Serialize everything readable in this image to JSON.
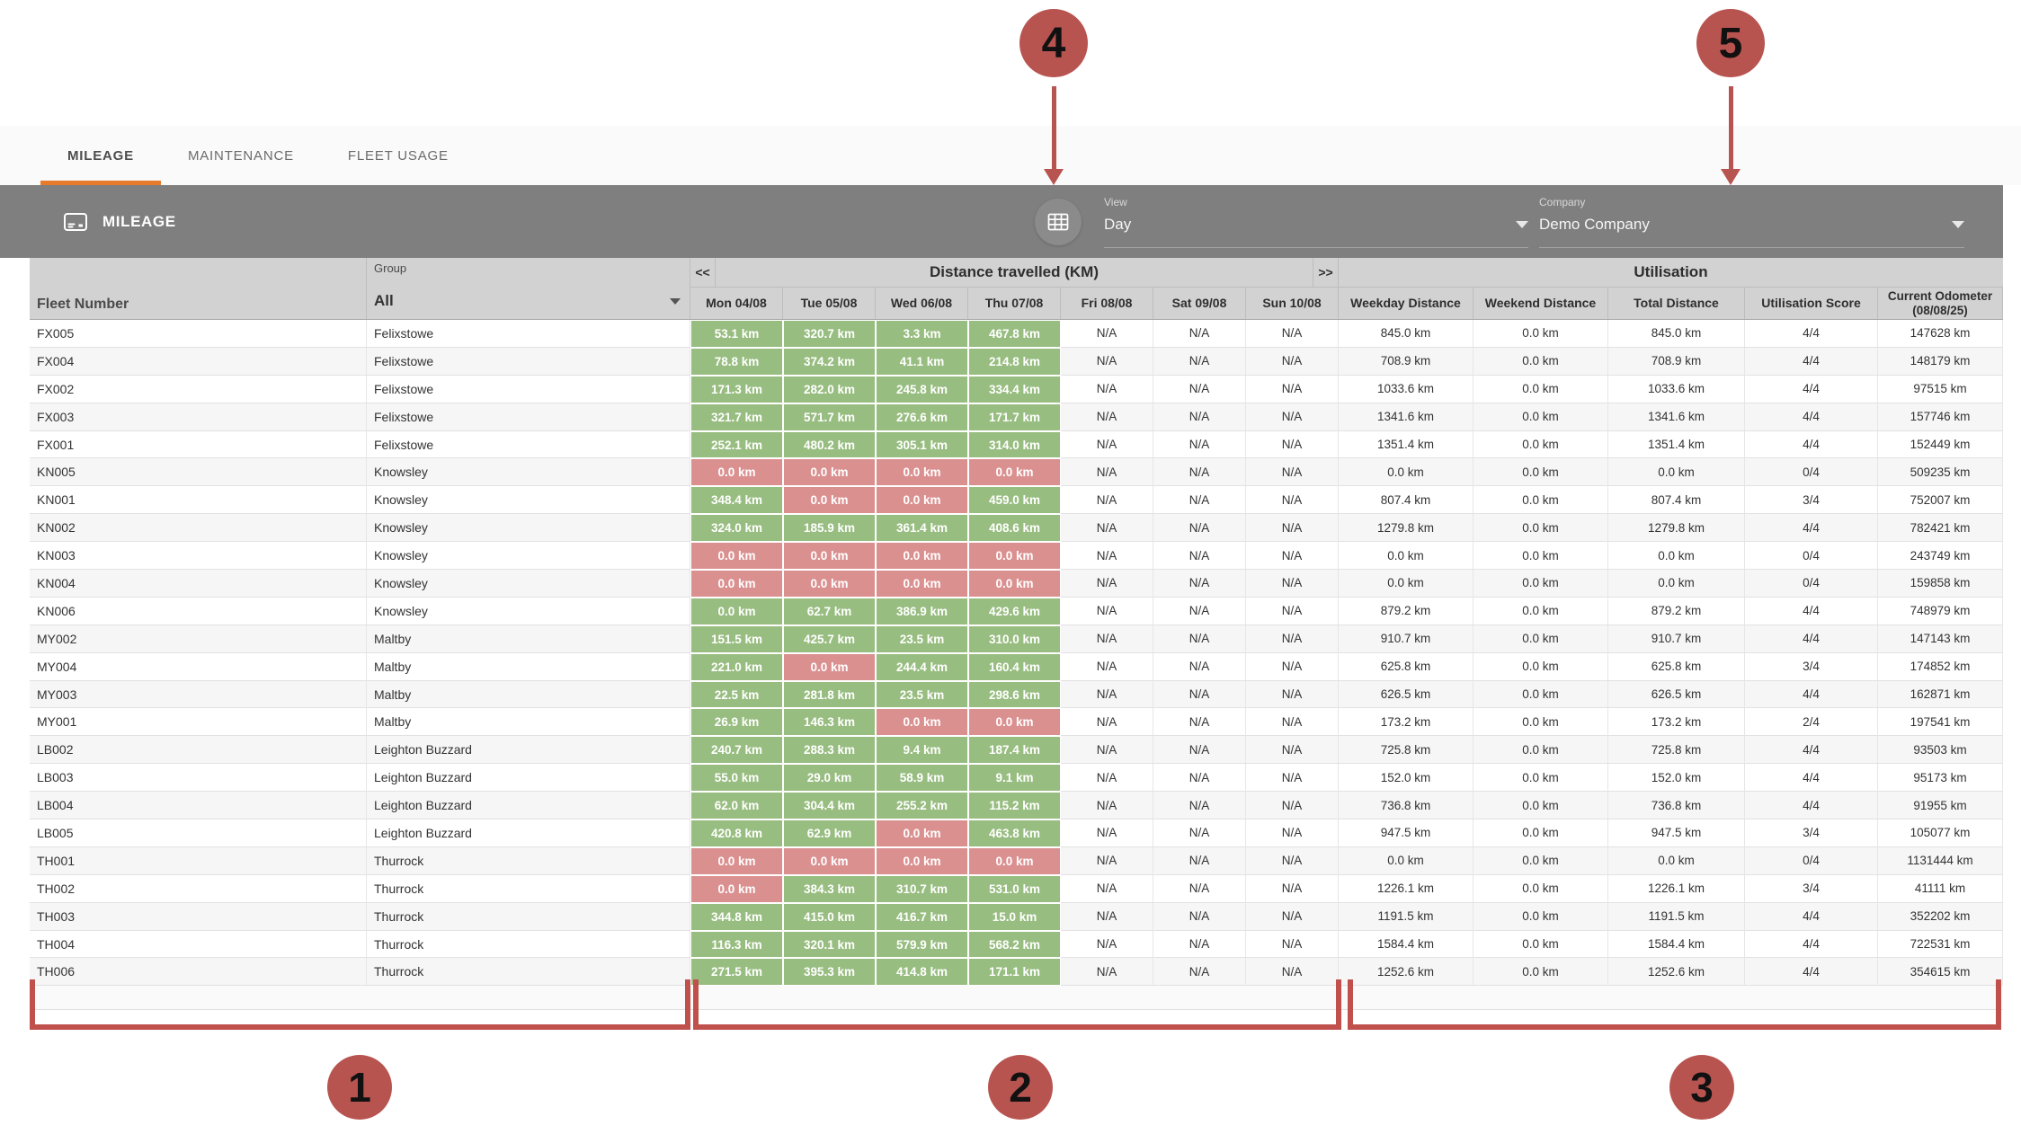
{
  "colors": {
    "accent_orange": "#e87a2b",
    "toolbar_gray": "#7f7f7f",
    "header_gray": "#d2d2d2",
    "positive_green": "#98bd80",
    "negative_red": "#db9090",
    "annotation_red": "#b85450"
  },
  "tabs": [
    {
      "label": "MILEAGE",
      "active": true
    },
    {
      "label": "MAINTENANCE",
      "active": false
    },
    {
      "label": "FLEET USAGE",
      "active": false
    }
  ],
  "toolbar": {
    "title": "MILEAGE",
    "view": {
      "label": "View",
      "value": "Day"
    },
    "company": {
      "label": "Company",
      "value": "Demo Company"
    }
  },
  "table": {
    "fleet_number_header": "Fleet Number",
    "group_label": "Group",
    "group_value": "All",
    "distance_section": {
      "prev": "<<",
      "title": "Distance travelled (KM)",
      "next": ">>",
      "day_headers": [
        "Mon 04/08",
        "Tue 05/08",
        "Wed 06/08",
        "Thu 07/08",
        "Fri 08/08",
        "Sat 09/08",
        "Sun 10/08"
      ]
    },
    "utilisation_section": {
      "title": "Utilisation",
      "headers": [
        "Weekday Distance",
        "Weekend Distance",
        "Total Distance",
        "Utilisation Score",
        "Current Odometer (08/08/25)"
      ]
    },
    "rows": [
      {
        "fleet": "FX005",
        "group": "Felixstowe",
        "days": [
          [
            "53.1 km",
            "green"
          ],
          [
            "320.7 km",
            "green"
          ],
          [
            "3.3 km",
            "green"
          ],
          [
            "467.8 km",
            "green"
          ],
          [
            "N/A",
            "na"
          ],
          [
            "N/A",
            "na"
          ],
          [
            "N/A",
            "na"
          ]
        ],
        "utilisation": [
          "845.0 km",
          "0.0 km",
          "845.0 km",
          "4/4",
          "147628 km"
        ]
      },
      {
        "fleet": "FX004",
        "group": "Felixstowe",
        "days": [
          [
            "78.8 km",
            "green"
          ],
          [
            "374.2 km",
            "green"
          ],
          [
            "41.1 km",
            "green"
          ],
          [
            "214.8 km",
            "green"
          ],
          [
            "N/A",
            "na"
          ],
          [
            "N/A",
            "na"
          ],
          [
            "N/A",
            "na"
          ]
        ],
        "utilisation": [
          "708.9 km",
          "0.0 km",
          "708.9 km",
          "4/4",
          "148179 km"
        ]
      },
      {
        "fleet": "FX002",
        "group": "Felixstowe",
        "days": [
          [
            "171.3 km",
            "green"
          ],
          [
            "282.0 km",
            "green"
          ],
          [
            "245.8 km",
            "green"
          ],
          [
            "334.4 km",
            "green"
          ],
          [
            "N/A",
            "na"
          ],
          [
            "N/A",
            "na"
          ],
          [
            "N/A",
            "na"
          ]
        ],
        "utilisation": [
          "1033.6 km",
          "0.0 km",
          "1033.6 km",
          "4/4",
          "97515 km"
        ]
      },
      {
        "fleet": "FX003",
        "group": "Felixstowe",
        "days": [
          [
            "321.7 km",
            "green"
          ],
          [
            "571.7 km",
            "green"
          ],
          [
            "276.6 km",
            "green"
          ],
          [
            "171.7 km",
            "green"
          ],
          [
            "N/A",
            "na"
          ],
          [
            "N/A",
            "na"
          ],
          [
            "N/A",
            "na"
          ]
        ],
        "utilisation": [
          "1341.6 km",
          "0.0 km",
          "1341.6 km",
          "4/4",
          "157746 km"
        ]
      },
      {
        "fleet": "FX001",
        "group": "Felixstowe",
        "days": [
          [
            "252.1 km",
            "green"
          ],
          [
            "480.2 km",
            "green"
          ],
          [
            "305.1 km",
            "green"
          ],
          [
            "314.0 km",
            "green"
          ],
          [
            "N/A",
            "na"
          ],
          [
            "N/A",
            "na"
          ],
          [
            "N/A",
            "na"
          ]
        ],
        "utilisation": [
          "1351.4 km",
          "0.0 km",
          "1351.4 km",
          "4/4",
          "152449 km"
        ]
      },
      {
        "fleet": "KN005",
        "group": "Knowsley",
        "days": [
          [
            "0.0 km",
            "red"
          ],
          [
            "0.0 km",
            "red"
          ],
          [
            "0.0 km",
            "red"
          ],
          [
            "0.0 km",
            "red"
          ],
          [
            "N/A",
            "na"
          ],
          [
            "N/A",
            "na"
          ],
          [
            "N/A",
            "na"
          ]
        ],
        "utilisation": [
          "0.0 km",
          "0.0 km",
          "0.0 km",
          "0/4",
          "509235 km"
        ]
      },
      {
        "fleet": "KN001",
        "group": "Knowsley",
        "days": [
          [
            "348.4 km",
            "green"
          ],
          [
            "0.0 km",
            "red"
          ],
          [
            "0.0 km",
            "red"
          ],
          [
            "459.0 km",
            "green"
          ],
          [
            "N/A",
            "na"
          ],
          [
            "N/A",
            "na"
          ],
          [
            "N/A",
            "na"
          ]
        ],
        "utilisation": [
          "807.4 km",
          "0.0 km",
          "807.4 km",
          "3/4",
          "752007 km"
        ]
      },
      {
        "fleet": "KN002",
        "group": "Knowsley",
        "days": [
          [
            "324.0 km",
            "green"
          ],
          [
            "185.9 km",
            "green"
          ],
          [
            "361.4 km",
            "green"
          ],
          [
            "408.6 km",
            "green"
          ],
          [
            "N/A",
            "na"
          ],
          [
            "N/A",
            "na"
          ],
          [
            "N/A",
            "na"
          ]
        ],
        "utilisation": [
          "1279.8 km",
          "0.0 km",
          "1279.8 km",
          "4/4",
          "782421 km"
        ]
      },
      {
        "fleet": "KN003",
        "group": "Knowsley",
        "days": [
          [
            "0.0 km",
            "red"
          ],
          [
            "0.0 km",
            "red"
          ],
          [
            "0.0 km",
            "red"
          ],
          [
            "0.0 km",
            "red"
          ],
          [
            "N/A",
            "na"
          ],
          [
            "N/A",
            "na"
          ],
          [
            "N/A",
            "na"
          ]
        ],
        "utilisation": [
          "0.0 km",
          "0.0 km",
          "0.0 km",
          "0/4",
          "243749 km"
        ]
      },
      {
        "fleet": "KN004",
        "group": "Knowsley",
        "days": [
          [
            "0.0 km",
            "red"
          ],
          [
            "0.0 km",
            "red"
          ],
          [
            "0.0 km",
            "red"
          ],
          [
            "0.0 km",
            "red"
          ],
          [
            "N/A",
            "na"
          ],
          [
            "N/A",
            "na"
          ],
          [
            "N/A",
            "na"
          ]
        ],
        "utilisation": [
          "0.0 km",
          "0.0 km",
          "0.0 km",
          "0/4",
          "159858 km"
        ]
      },
      {
        "fleet": "KN006",
        "group": "Knowsley",
        "days": [
          [
            "0.0 km",
            "green"
          ],
          [
            "62.7 km",
            "green"
          ],
          [
            "386.9 km",
            "green"
          ],
          [
            "429.6 km",
            "green"
          ],
          [
            "N/A",
            "na"
          ],
          [
            "N/A",
            "na"
          ],
          [
            "N/A",
            "na"
          ]
        ],
        "utilisation": [
          "879.2 km",
          "0.0 km",
          "879.2 km",
          "4/4",
          "748979 km"
        ]
      },
      {
        "fleet": "MY002",
        "group": "Maltby",
        "days": [
          [
            "151.5 km",
            "green"
          ],
          [
            "425.7 km",
            "green"
          ],
          [
            "23.5 km",
            "green"
          ],
          [
            "310.0 km",
            "green"
          ],
          [
            "N/A",
            "na"
          ],
          [
            "N/A",
            "na"
          ],
          [
            "N/A",
            "na"
          ]
        ],
        "utilisation": [
          "910.7 km",
          "0.0 km",
          "910.7 km",
          "4/4",
          "147143 km"
        ]
      },
      {
        "fleet": "MY004",
        "group": "Maltby",
        "days": [
          [
            "221.0 km",
            "green"
          ],
          [
            "0.0 km",
            "red"
          ],
          [
            "244.4 km",
            "green"
          ],
          [
            "160.4 km",
            "green"
          ],
          [
            "N/A",
            "na"
          ],
          [
            "N/A",
            "na"
          ],
          [
            "N/A",
            "na"
          ]
        ],
        "utilisation": [
          "625.8 km",
          "0.0 km",
          "625.8 km",
          "3/4",
          "174852 km"
        ]
      },
      {
        "fleet": "MY003",
        "group": "Maltby",
        "days": [
          [
            "22.5 km",
            "green"
          ],
          [
            "281.8 km",
            "green"
          ],
          [
            "23.5 km",
            "green"
          ],
          [
            "298.6 km",
            "green"
          ],
          [
            "N/A",
            "na"
          ],
          [
            "N/A",
            "na"
          ],
          [
            "N/A",
            "na"
          ]
        ],
        "utilisation": [
          "626.5 km",
          "0.0 km",
          "626.5 km",
          "4/4",
          "162871 km"
        ]
      },
      {
        "fleet": "MY001",
        "group": "Maltby",
        "days": [
          [
            "26.9 km",
            "green"
          ],
          [
            "146.3 km",
            "green"
          ],
          [
            "0.0 km",
            "red"
          ],
          [
            "0.0 km",
            "red"
          ],
          [
            "N/A",
            "na"
          ],
          [
            "N/A",
            "na"
          ],
          [
            "N/A",
            "na"
          ]
        ],
        "utilisation": [
          "173.2 km",
          "0.0 km",
          "173.2 km",
          "2/4",
          "197541 km"
        ]
      },
      {
        "fleet": "LB002",
        "group": "Leighton Buzzard",
        "days": [
          [
            "240.7 km",
            "green"
          ],
          [
            "288.3 km",
            "green"
          ],
          [
            "9.4 km",
            "green"
          ],
          [
            "187.4 km",
            "green"
          ],
          [
            "N/A",
            "na"
          ],
          [
            "N/A",
            "na"
          ],
          [
            "N/A",
            "na"
          ]
        ],
        "utilisation": [
          "725.8 km",
          "0.0 km",
          "725.8 km",
          "4/4",
          "93503 km"
        ]
      },
      {
        "fleet": "LB003",
        "group": "Leighton Buzzard",
        "days": [
          [
            "55.0 km",
            "green"
          ],
          [
            "29.0 km",
            "green"
          ],
          [
            "58.9 km",
            "green"
          ],
          [
            "9.1 km",
            "green"
          ],
          [
            "N/A",
            "na"
          ],
          [
            "N/A",
            "na"
          ],
          [
            "N/A",
            "na"
          ]
        ],
        "utilisation": [
          "152.0 km",
          "0.0 km",
          "152.0 km",
          "4/4",
          "95173 km"
        ]
      },
      {
        "fleet": "LB004",
        "group": "Leighton Buzzard",
        "days": [
          [
            "62.0 km",
            "green"
          ],
          [
            "304.4 km",
            "green"
          ],
          [
            "255.2 km",
            "green"
          ],
          [
            "115.2 km",
            "green"
          ],
          [
            "N/A",
            "na"
          ],
          [
            "N/A",
            "na"
          ],
          [
            "N/A",
            "na"
          ]
        ],
        "utilisation": [
          "736.8 km",
          "0.0 km",
          "736.8 km",
          "4/4",
          "91955 km"
        ]
      },
      {
        "fleet": "LB005",
        "group": "Leighton Buzzard",
        "days": [
          [
            "420.8 km",
            "green"
          ],
          [
            "62.9 km",
            "green"
          ],
          [
            "0.0 km",
            "red"
          ],
          [
            "463.8 km",
            "green"
          ],
          [
            "N/A",
            "na"
          ],
          [
            "N/A",
            "na"
          ],
          [
            "N/A",
            "na"
          ]
        ],
        "utilisation": [
          "947.5 km",
          "0.0 km",
          "947.5 km",
          "3/4",
          "105077 km"
        ]
      },
      {
        "fleet": "TH001",
        "group": "Thurrock",
        "days": [
          [
            "0.0 km",
            "red"
          ],
          [
            "0.0 km",
            "red"
          ],
          [
            "0.0 km",
            "red"
          ],
          [
            "0.0 km",
            "red"
          ],
          [
            "N/A",
            "na"
          ],
          [
            "N/A",
            "na"
          ],
          [
            "N/A",
            "na"
          ]
        ],
        "utilisation": [
          "0.0 km",
          "0.0 km",
          "0.0 km",
          "0/4",
          "1131444 km"
        ]
      },
      {
        "fleet": "TH002",
        "group": "Thurrock",
        "days": [
          [
            "0.0 km",
            "red"
          ],
          [
            "384.3 km",
            "green"
          ],
          [
            "310.7 km",
            "green"
          ],
          [
            "531.0 km",
            "green"
          ],
          [
            "N/A",
            "na"
          ],
          [
            "N/A",
            "na"
          ],
          [
            "N/A",
            "na"
          ]
        ],
        "utilisation": [
          "1226.1 km",
          "0.0 km",
          "1226.1 km",
          "3/4",
          "41111 km"
        ]
      },
      {
        "fleet": "TH003",
        "group": "Thurrock",
        "days": [
          [
            "344.8 km",
            "green"
          ],
          [
            "415.0 km",
            "green"
          ],
          [
            "416.7 km",
            "green"
          ],
          [
            "15.0 km",
            "green"
          ],
          [
            "N/A",
            "na"
          ],
          [
            "N/A",
            "na"
          ],
          [
            "N/A",
            "na"
          ]
        ],
        "utilisation": [
          "1191.5 km",
          "0.0 km",
          "1191.5 km",
          "4/4",
          "352202 km"
        ]
      },
      {
        "fleet": "TH004",
        "group": "Thurrock",
        "days": [
          [
            "116.3 km",
            "green"
          ],
          [
            "320.1 km",
            "green"
          ],
          [
            "579.9 km",
            "green"
          ],
          [
            "568.2 km",
            "green"
          ],
          [
            "N/A",
            "na"
          ],
          [
            "N/A",
            "na"
          ],
          [
            "N/A",
            "na"
          ]
        ],
        "utilisation": [
          "1584.4 km",
          "0.0 km",
          "1584.4 km",
          "4/4",
          "722531 km"
        ]
      },
      {
        "fleet": "TH006",
        "group": "Thurrock",
        "days": [
          [
            "271.5 km",
            "green"
          ],
          [
            "395.3 km",
            "green"
          ],
          [
            "414.8 km",
            "green"
          ],
          [
            "171.1 km",
            "green"
          ],
          [
            "N/A",
            "na"
          ],
          [
            "N/A",
            "na"
          ],
          [
            "N/A",
            "na"
          ]
        ],
        "utilisation": [
          "1252.6 km",
          "0.0 km",
          "1252.6 km",
          "4/4",
          "354615 km"
        ]
      }
    ]
  },
  "annotations": {
    "callouts": [
      "1",
      "2",
      "3",
      "4",
      "5"
    ]
  }
}
